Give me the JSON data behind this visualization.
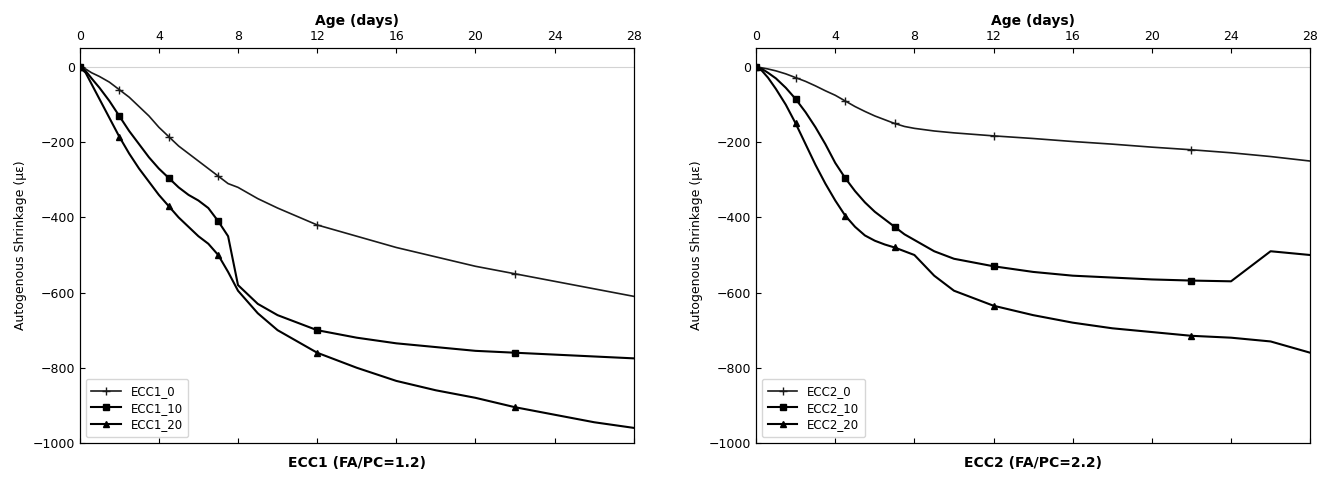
{
  "ecc1": {
    "title_top": "Age (days)",
    "xlabel": "ECC1 (FA/PC=1.2)",
    "ylabel": "Autogenous Shrinkage (με)",
    "xlim": [
      0,
      28
    ],
    "ylim": [
      -1000,
      50
    ],
    "xticks_top": [
      0,
      4,
      8,
      12,
      16,
      20,
      24,
      28
    ],
    "xticks_bottom": [
      0,
      4,
      8,
      12,
      16,
      20,
      24,
      28
    ],
    "yticks": [
      0,
      -200,
      -400,
      -600,
      -800,
      -1000
    ],
    "series": {
      "ECC1_0": {
        "x": [
          0,
          0.3,
          0.6,
          1,
          1.5,
          2,
          2.5,
          3,
          3.5,
          4,
          4.5,
          5,
          5.5,
          6,
          6.5,
          7,
          7.5,
          8,
          9,
          10,
          12,
          14,
          16,
          18,
          20,
          22,
          24,
          26,
          28
        ],
        "y": [
          0,
          -5,
          -15,
          -25,
          -40,
          -60,
          -80,
          -105,
          -130,
          -160,
          -185,
          -210,
          -230,
          -250,
          -270,
          -290,
          -310,
          -320,
          -350,
          -375,
          -420,
          -450,
          -480,
          -505,
          -530,
          -550,
          -570,
          -590,
          -610
        ],
        "marker": "+",
        "markersize": 6,
        "markevery": 5,
        "linewidth": 1.2,
        "color": "#1a1a1a"
      },
      "ECC1_10": {
        "x": [
          0,
          0.3,
          0.6,
          1,
          1.5,
          2,
          2.5,
          3,
          3.5,
          4,
          4.5,
          5,
          5.5,
          6,
          6.5,
          7,
          7.5,
          8,
          9,
          10,
          12,
          14,
          16,
          18,
          20,
          22,
          24,
          26,
          28
        ],
        "y": [
          0,
          -10,
          -30,
          -55,
          -90,
          -130,
          -170,
          -205,
          -240,
          -270,
          -295,
          -320,
          -340,
          -355,
          -375,
          -410,
          -450,
          -580,
          -630,
          -660,
          -700,
          -720,
          -735,
          -745,
          -755,
          -760,
          -765,
          -770,
          -775
        ],
        "marker": "s",
        "markersize": 4,
        "markevery": 5,
        "linewidth": 1.5,
        "color": "#000000"
      },
      "ECC1_20": {
        "x": [
          0,
          0.3,
          0.6,
          1,
          1.5,
          2,
          2.5,
          3,
          3.5,
          4,
          4.5,
          5,
          5.5,
          6,
          6.5,
          7,
          7.5,
          8,
          9,
          10,
          12,
          14,
          16,
          18,
          20,
          22,
          24,
          26,
          28
        ],
        "y": [
          0,
          -15,
          -45,
          -85,
          -135,
          -185,
          -230,
          -270,
          -305,
          -340,
          -370,
          -400,
          -425,
          -450,
          -470,
          -500,
          -545,
          -595,
          -655,
          -700,
          -760,
          -800,
          -835,
          -860,
          -880,
          -905,
          -925,
          -945,
          -960
        ],
        "marker": "^",
        "markersize": 4,
        "markevery": 5,
        "linewidth": 1.5,
        "color": "#000000"
      }
    }
  },
  "ecc2": {
    "title_top": "Age (days)",
    "xlabel": "ECC2 (FA/PC=2.2)",
    "ylabel": "Autogenous Shrinkage (με)",
    "xlim": [
      0,
      28
    ],
    "ylim": [
      -1000,
      50
    ],
    "xticks_top": [
      0,
      4,
      8,
      12,
      16,
      20,
      24,
      28
    ],
    "xticks_bottom": [
      0,
      4,
      8,
      12,
      16,
      20,
      24,
      28
    ],
    "yticks": [
      0,
      -200,
      -400,
      -600,
      -800,
      -1000
    ],
    "series": {
      "ECC2_0": {
        "x": [
          0,
          0.3,
          0.6,
          1,
          1.5,
          2,
          2.5,
          3,
          3.5,
          4,
          4.5,
          5,
          5.5,
          6,
          6.5,
          7,
          7.5,
          8,
          9,
          10,
          12,
          14,
          16,
          18,
          20,
          22,
          24,
          26,
          28
        ],
        "y": [
          0,
          -2,
          -5,
          -10,
          -18,
          -28,
          -38,
          -50,
          -63,
          -75,
          -90,
          -105,
          -118,
          -130,
          -140,
          -150,
          -158,
          -163,
          -170,
          -175,
          -183,
          -190,
          -198,
          -205,
          -213,
          -220,
          -228,
          -238,
          -250
        ],
        "marker": "+",
        "markersize": 6,
        "markevery": 5,
        "linewidth": 1.2,
        "color": "#1a1a1a"
      },
      "ECC2_10": {
        "x": [
          0,
          0.3,
          0.6,
          1,
          1.5,
          2,
          2.5,
          3,
          3.5,
          4,
          4.5,
          5,
          5.5,
          6,
          6.5,
          7,
          7.5,
          8,
          9,
          10,
          12,
          14,
          16,
          18,
          20,
          22,
          24,
          26,
          28
        ],
        "y": [
          0,
          -5,
          -15,
          -30,
          -55,
          -85,
          -120,
          -160,
          -205,
          -255,
          -295,
          -330,
          -360,
          -385,
          -405,
          -425,
          -445,
          -460,
          -490,
          -510,
          -530,
          -545,
          -555,
          -560,
          -565,
          -568,
          -570,
          -490,
          -500
        ],
        "marker": "s",
        "markersize": 4,
        "markevery": 5,
        "linewidth": 1.5,
        "color": "#000000"
      },
      "ECC2_20": {
        "x": [
          0,
          0.3,
          0.6,
          1,
          1.5,
          2,
          2.5,
          3,
          3.5,
          4,
          4.5,
          5,
          5.5,
          6,
          6.5,
          7,
          7.5,
          8,
          9,
          10,
          12,
          14,
          16,
          18,
          20,
          22,
          24,
          26,
          28
        ],
        "y": [
          0,
          -10,
          -28,
          -58,
          -100,
          -150,
          -205,
          -260,
          -310,
          -355,
          -395,
          -425,
          -448,
          -462,
          -472,
          -480,
          -490,
          -500,
          -555,
          -595,
          -635,
          -660,
          -680,
          -695,
          -705,
          -715,
          -720,
          -730,
          -760
        ],
        "marker": "^",
        "markersize": 4,
        "markevery": 5,
        "linewidth": 1.5,
        "color": "#000000"
      }
    }
  },
  "bg_color": "#ffffff",
  "text_color": "#000000"
}
